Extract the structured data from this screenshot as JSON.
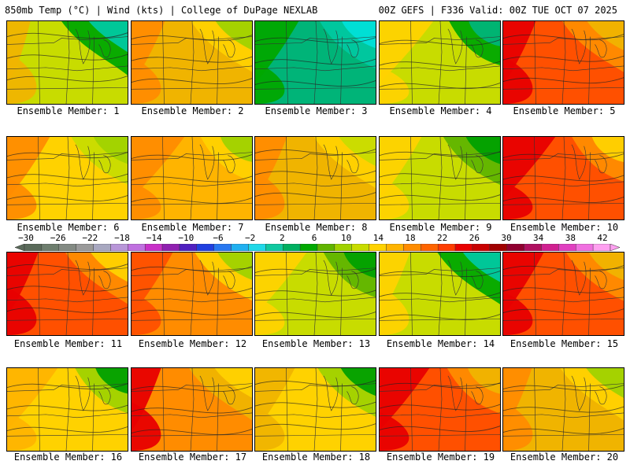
{
  "header": {
    "left": "850mb Temp (°C) | Wind (kts) | College of DuPage NEXLAB",
    "right": "00Z GEFS | F336 Valid: 00Z TUE OCT 07 2025"
  },
  "members": [
    {
      "label": "Ensemble Member: 1",
      "palette": [
        "#f0b400",
        "#c8dc00",
        "#00a800",
        "#00c8a0"
      ]
    },
    {
      "label": "Ensemble Member: 2",
      "palette": [
        "#ff8c00",
        "#f0b400",
        "#ffd200",
        "#a0d200"
      ]
    },
    {
      "label": "Ensemble Member: 3",
      "palette": [
        "#00a800",
        "#00b478",
        "#00c8a0",
        "#00e0d8"
      ]
    },
    {
      "label": "Ensemble Member: 4",
      "palette": [
        "#ffd200",
        "#c8dc00",
        "#00a800",
        "#00b478"
      ]
    },
    {
      "label": "Ensemble Member: 5",
      "palette": [
        "#e80000",
        "#ff5000",
        "#ff8c00",
        "#f0b400"
      ]
    },
    {
      "label": "Ensemble Member: 6",
      "palette": [
        "#ff8c00",
        "#ffd200",
        "#c8dc00",
        "#a0d200"
      ]
    },
    {
      "label": "Ensemble Member: 7",
      "palette": [
        "#ff8c00",
        "#ffb400",
        "#ffd200",
        "#a0d200"
      ]
    },
    {
      "label": "Ensemble Member: 8",
      "palette": [
        "#ff8c00",
        "#f0b400",
        "#ffd200",
        "#c8dc00"
      ]
    },
    {
      "label": "Ensemble Member: 9",
      "palette": [
        "#ffd200",
        "#c8dc00",
        "#60b400",
        "#00a000"
      ]
    },
    {
      "label": "Ensemble Member: 10",
      "palette": [
        "#e80000",
        "#ff5000",
        "#ff8c00",
        "#ffd200"
      ]
    },
    {
      "label": "Ensemble Member: 11",
      "palette": [
        "#e80000",
        "#ff5000",
        "#ff8c00",
        "#ffd200"
      ]
    },
    {
      "label": "Ensemble Member: 12",
      "palette": [
        "#ff5000",
        "#ff8c00",
        "#ffd200",
        "#a0d200"
      ]
    },
    {
      "label": "Ensemble Member: 13",
      "palette": [
        "#ffd200",
        "#c8dc00",
        "#60b400",
        "#00a000"
      ]
    },
    {
      "label": "Ensemble Member: 14",
      "palette": [
        "#ffd200",
        "#c8dc00",
        "#00a800",
        "#00c8a0"
      ]
    },
    {
      "label": "Ensemble Member: 15",
      "palette": [
        "#e80000",
        "#ff5000",
        "#ff8c00",
        "#f0b400"
      ]
    },
    {
      "label": "Ensemble Member: 16",
      "palette": [
        "#ffb400",
        "#ffd200",
        "#a0d200",
        "#00a000"
      ]
    },
    {
      "label": "Ensemble Member: 17",
      "palette": [
        "#e80000",
        "#ff8c00",
        "#f0b400",
        "#ffd200"
      ]
    },
    {
      "label": "Ensemble Member: 18",
      "palette": [
        "#f0b400",
        "#ffd200",
        "#a0d200",
        "#00a000"
      ]
    },
    {
      "label": "Ensemble Member: 19",
      "palette": [
        "#e80000",
        "#ff5000",
        "#ff8c00",
        "#f0b400"
      ]
    },
    {
      "label": "Ensemble Member: 20",
      "palette": [
        "#ff8c00",
        "#f0b400",
        "#ffd200",
        "#a0d200"
      ]
    }
  ],
  "colorbar": {
    "ticks": [
      "-30",
      "-26",
      "-22",
      "-18",
      "-14",
      "-10",
      "-6",
      "-2",
      "2",
      "6",
      "10",
      "14",
      "18",
      "22",
      "26",
      "30",
      "34",
      "38",
      "42"
    ],
    "colors": [
      "#5a6a5a",
      "#6e7e6e",
      "#838a83",
      "#9a9a9a",
      "#a8a8c0",
      "#b896d8",
      "#c070e0",
      "#c830c8",
      "#9020b0",
      "#5020c0",
      "#2040e0",
      "#2878f0",
      "#20b0f0",
      "#20d8e8",
      "#10c8a0",
      "#00b060",
      "#00a800",
      "#60b400",
      "#a0d200",
      "#c8dc00",
      "#ffd200",
      "#ffb400",
      "#ff8c00",
      "#ff6400",
      "#ff3c00",
      "#e80000",
      "#c80000",
      "#a00000",
      "#900030",
      "#b01060",
      "#d02090",
      "#e040c0",
      "#f070e0",
      "#ffa0f0"
    ]
  }
}
